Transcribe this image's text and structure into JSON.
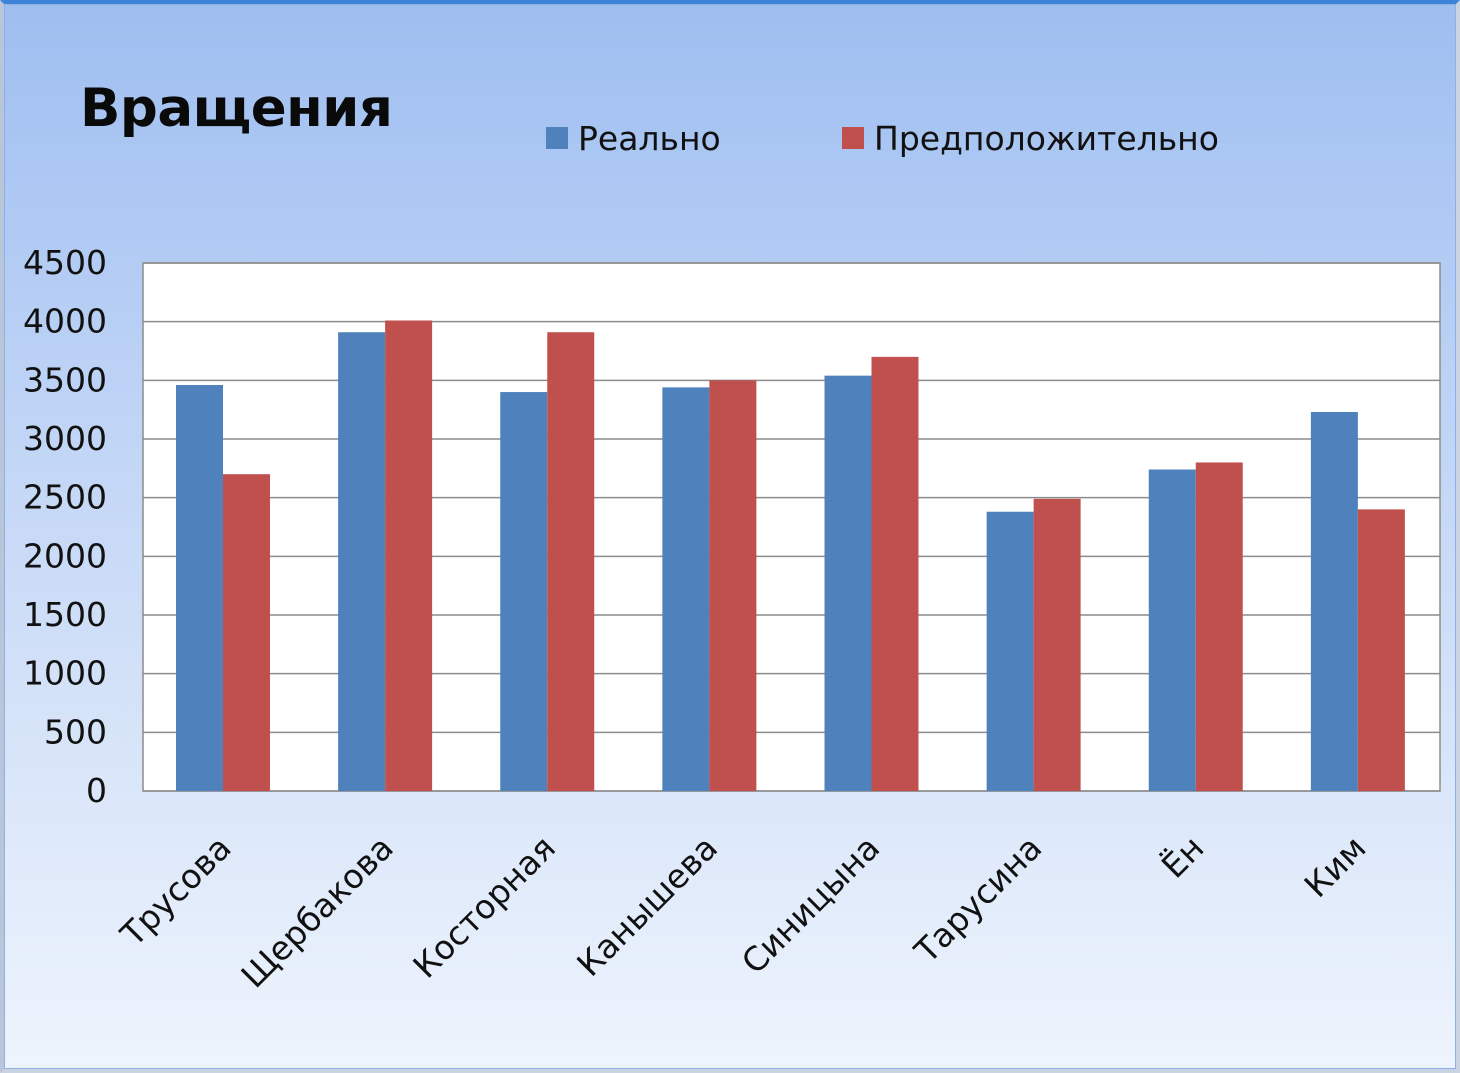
{
  "chart_data": {
    "type": "bar",
    "title": "Вращения",
    "xlabel": "",
    "ylabel": "",
    "categories": [
      "Трусова",
      "Щербакова",
      "Косторная",
      "Канышева",
      "Синицына",
      "Тарусина",
      "Ён",
      "Ким"
    ],
    "series": [
      {
        "name": "Реально",
        "color": "#4f81bd",
        "values": [
          3460,
          3910,
          3400,
          3440,
          3540,
          2380,
          2740,
          3230
        ]
      },
      {
        "name": "Предположительно",
        "color": "#c0504d",
        "values": [
          2700,
          4010,
          3910,
          3500,
          3700,
          2490,
          2800,
          2400
        ]
      }
    ],
    "ylim": [
      0,
      4500
    ],
    "yticks": [
      0,
      500,
      1000,
      1500,
      2000,
      2500,
      3000,
      3500,
      4000,
      4500
    ],
    "grid": true,
    "legend_position": "top"
  }
}
